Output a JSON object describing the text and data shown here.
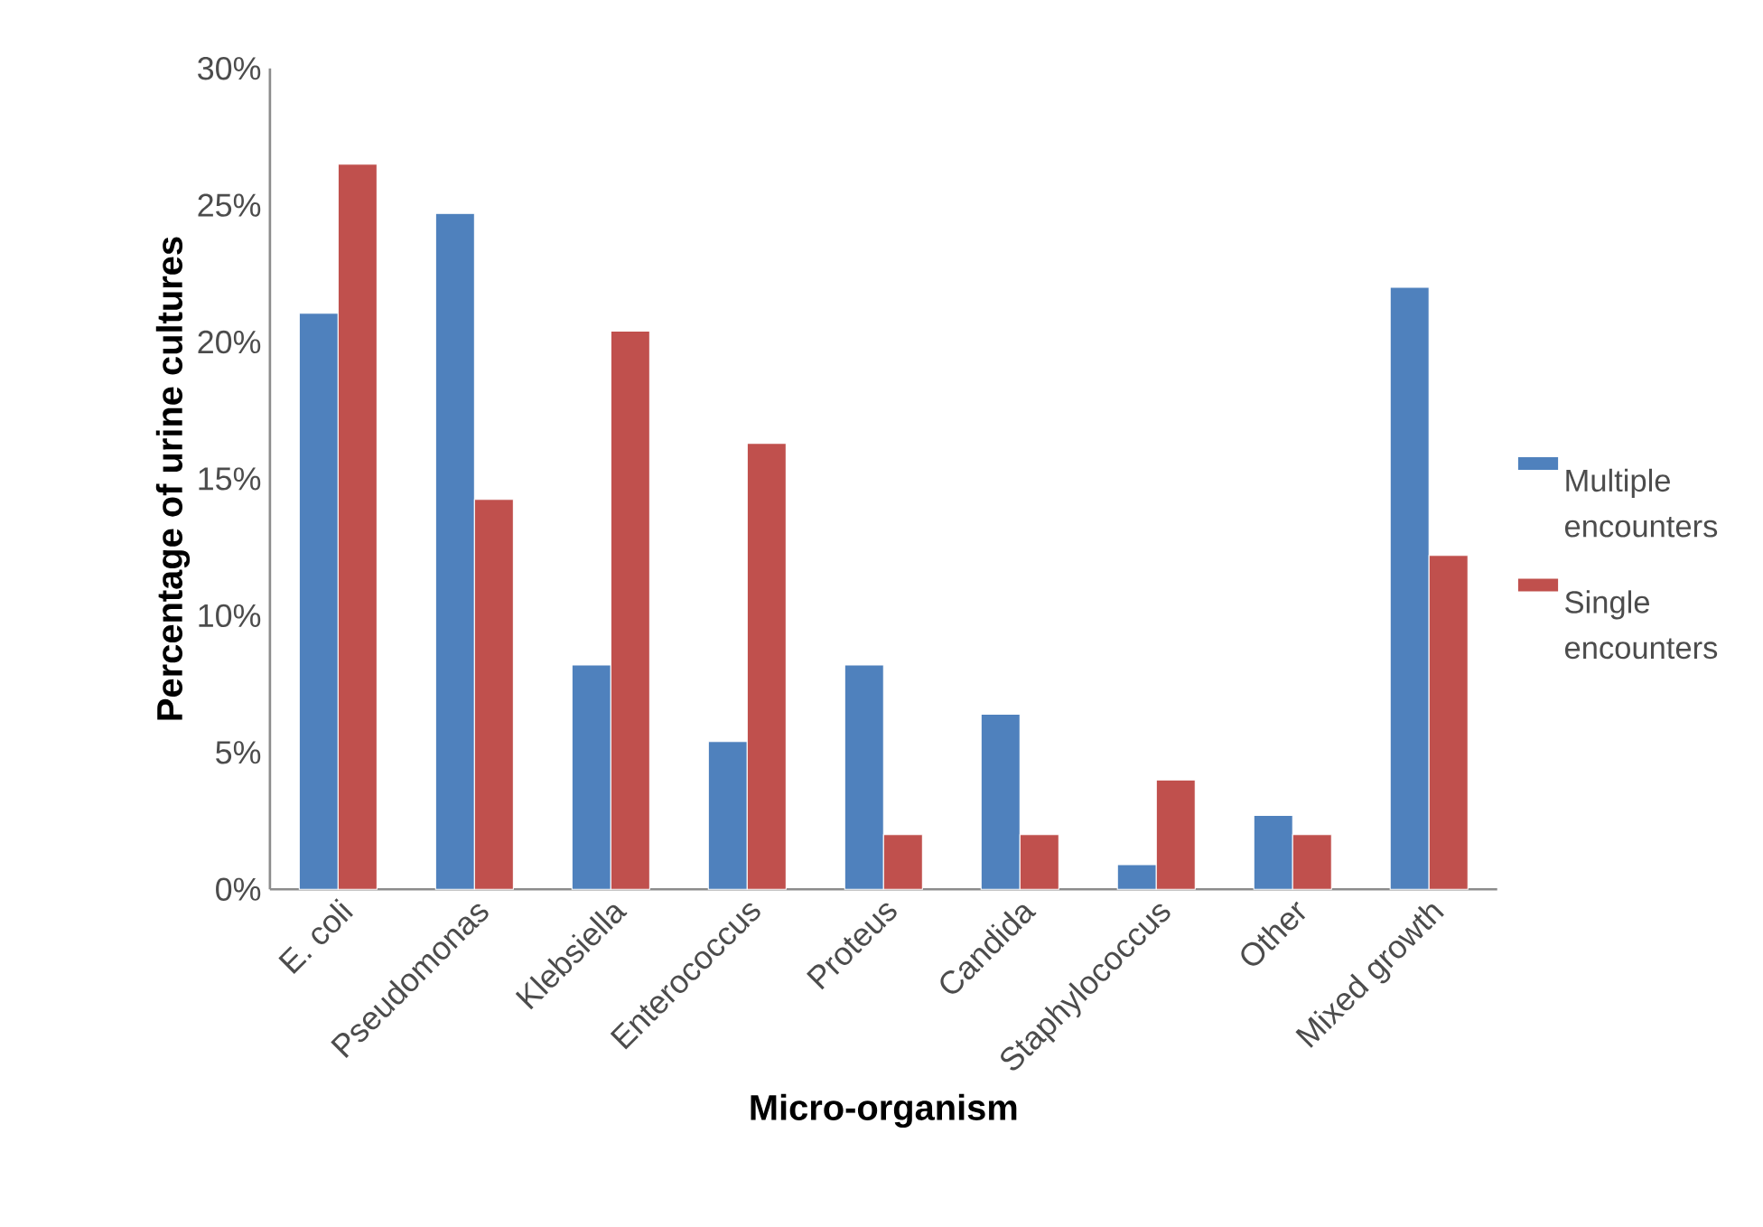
{
  "chart_data": {
    "type": "bar",
    "xlabel": "Micro-organism",
    "ylabel": "Percentage of urine cultures",
    "categories": [
      "E. coli",
      "Pseudomonas",
      "Klebsiella",
      "Enterococcus",
      "Proteus",
      "Candida",
      "Staphylococcus",
      "Other",
      "Mixed growth"
    ],
    "series": [
      {
        "name": "Multiple encounters",
        "color": "#4f81bd",
        "values": [
          21.05,
          24.7,
          8.2,
          5.4,
          8.2,
          6.4,
          0.9,
          2.7,
          22.0
        ]
      },
      {
        "name": "Single encounters",
        "color": "#c0504d",
        "values": [
          26.5,
          14.25,
          20.4,
          16.3,
          2.0,
          2.0,
          4.0,
          2.0,
          12.2
        ]
      }
    ],
    "ylim": [
      0,
      30
    ],
    "yticks": [
      {
        "value": 0,
        "label": "0%"
      },
      {
        "value": 5,
        "label": "5%"
      },
      {
        "value": 10,
        "label": "10%"
      },
      {
        "value": 15,
        "label": "15%"
      },
      {
        "value": 20,
        "label": "20%"
      },
      {
        "value": 25,
        "label": "25%"
      },
      {
        "value": 30,
        "label": "30%"
      }
    ],
    "legend": "right"
  }
}
